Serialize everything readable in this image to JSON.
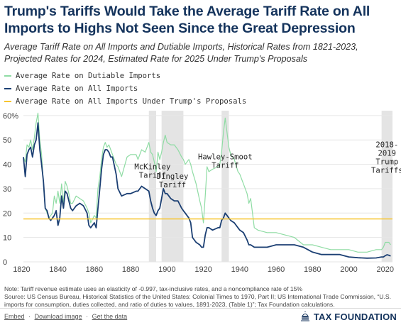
{
  "title": "Trump's Tariffs Would Take the Average Tariff Rate on All Imports to Highs Not Seen Since the Great Depression",
  "subtitle": "Average Tariff Rate on All Imports and Dutiable Imports, Historical Rates from 1821-2023, Projected Rates for 2024, Estimated Rate for 2025 Under Trump's Proposals",
  "colors": {
    "dutiable": "#8fdca4",
    "all_imports": "#1b3f73",
    "trump_proposals": "#f7c52d",
    "shading": "#e4e4e4",
    "grid": "#e6e6e6"
  },
  "chart_data": {
    "type": "line",
    "xlim": [
      1821,
      2024
    ],
    "ylim": [
      0,
      62
    ],
    "x_ticks": [
      1820,
      1840,
      1860,
      1880,
      1900,
      1920,
      1940,
      1960,
      1980,
      2000,
      2020
    ],
    "x_tick_labels": [
      "1820",
      "1840",
      "1860",
      "1880",
      "1900",
      "1920",
      "1940",
      "1960",
      "1980",
      "2000",
      "2020"
    ],
    "y_ticks": [
      0,
      10,
      20,
      30,
      40,
      50,
      60
    ],
    "y_tick_labels": [
      "0",
      "10",
      "20",
      "30",
      "40",
      "50",
      "60%"
    ],
    "legend_position": "top-left",
    "grid": true,
    "shaded_periods": [
      {
        "name": "McKinley Tariff",
        "start": 1890,
        "end": 1894
      },
      {
        "name": "Dingley Tariff",
        "start": 1897,
        "end": 1909
      },
      {
        "name": "Hawley-Smoot Tariff",
        "start": 1930,
        "end": 1934
      },
      {
        "name": "2018-2019 Trump Tariffs",
        "start": 2018,
        "end": 2024
      }
    ],
    "annotations": [
      {
        "lines": [
          "McKinley",
          "Tariff"
        ],
        "x": 1892,
        "y": 38
      },
      {
        "lines": [
          "Dingley",
          "Tariff"
        ],
        "x": 1903,
        "y": 34
      },
      {
        "lines": [
          "Hawley-Smoot",
          "Tariff"
        ],
        "x": 1932,
        "y": 42
      },
      {
        "lines": [
          "2018-",
          "2019",
          "Trump",
          "Tariffs"
        ],
        "x": 2021,
        "y": 47
      }
    ],
    "series": [
      {
        "name": "Average Rate on Dutiable Imports",
        "color_key": "dutiable",
        "x": [
          1821,
          1822,
          1823,
          1824,
          1825,
          1826,
          1827,
          1828,
          1829,
          1830,
          1831,
          1832,
          1833,
          1834,
          1835,
          1836,
          1837,
          1838,
          1839,
          1840,
          1841,
          1842,
          1843,
          1844,
          1845,
          1846,
          1847,
          1848,
          1850,
          1852,
          1854,
          1856,
          1857,
          1858,
          1860,
          1861,
          1862,
          1863,
          1864,
          1865,
          1866,
          1867,
          1868,
          1869,
          1870,
          1872,
          1873,
          1875,
          1878,
          1880,
          1883,
          1884,
          1886,
          1888,
          1890,
          1891,
          1892,
          1893,
          1894,
          1895,
          1896,
          1897,
          1898,
          1899,
          1900,
          1902,
          1904,
          1906,
          1908,
          1909,
          1910,
          1912,
          1913,
          1914,
          1916,
          1918,
          1919,
          1920,
          1921,
          1922,
          1923,
          1925,
          1928,
          1929,
          1930,
          1931,
          1932,
          1933,
          1934,
          1935,
          1937,
          1939,
          1940,
          1942,
          1944,
          1945,
          1946,
          1948,
          1950,
          1955,
          1960,
          1965,
          1970,
          1975,
          1980,
          1985,
          1990,
          1995,
          2000,
          2005,
          2010,
          2015,
          2018,
          2019,
          2020,
          2021,
          2022,
          2023
        ],
        "values": [
          43,
          41,
          48,
          47,
          50,
          46,
          51,
          57,
          61,
          50,
          44,
          32,
          22,
          20,
          18,
          19,
          20,
          27,
          24,
          29,
          24,
          32,
          24,
          33,
          31,
          28,
          24,
          24,
          27,
          26,
          25,
          22,
          20,
          16,
          19,
          18,
          30,
          35,
          42,
          47,
          49,
          47,
          48,
          46,
          44,
          40,
          39,
          35,
          43,
          44,
          44,
          42,
          46,
          45,
          49,
          45,
          44,
          41,
          37,
          45,
          42,
          45,
          49,
          52,
          49,
          48,
          48,
          46,
          43,
          42,
          40,
          42,
          40,
          37,
          32,
          25,
          22,
          16,
          27,
          39,
          37,
          38,
          39,
          40,
          45,
          53,
          59,
          53,
          47,
          44,
          42,
          37,
          36,
          32,
          28,
          24,
          26,
          14,
          13,
          12,
          12,
          11,
          10,
          7,
          7,
          6,
          5,
          5,
          5,
          4,
          4,
          5,
          5,
          6,
          8,
          8,
          8,
          7
        ]
      },
      {
        "name": "Average Rate on All Imports",
        "color_key": "all_imports",
        "x": [
          1821,
          1822,
          1823,
          1824,
          1825,
          1826,
          1827,
          1828,
          1829,
          1830,
          1831,
          1832,
          1833,
          1834,
          1835,
          1836,
          1837,
          1838,
          1839,
          1840,
          1841,
          1842,
          1843,
          1844,
          1845,
          1846,
          1847,
          1848,
          1850,
          1852,
          1854,
          1856,
          1857,
          1858,
          1860,
          1861,
          1862,
          1863,
          1864,
          1865,
          1866,
          1867,
          1868,
          1869,
          1870,
          1872,
          1873,
          1875,
          1878,
          1880,
          1883,
          1884,
          1886,
          1888,
          1890,
          1891,
          1892,
          1893,
          1894,
          1895,
          1896,
          1897,
          1898,
          1899,
          1900,
          1902,
          1904,
          1906,
          1908,
          1909,
          1910,
          1912,
          1913,
          1914,
          1916,
          1918,
          1919,
          1920,
          1921,
          1922,
          1923,
          1925,
          1928,
          1929,
          1930,
          1931,
          1932,
          1933,
          1934,
          1935,
          1937,
          1939,
          1940,
          1942,
          1944,
          1945,
          1946,
          1948,
          1950,
          1955,
          1960,
          1965,
          1970,
          1975,
          1980,
          1985,
          1990,
          1995,
          2000,
          2005,
          2010,
          2015,
          2018,
          2019,
          2020,
          2021,
          2022,
          2023
        ],
        "values": [
          43,
          35,
          44,
          46,
          47,
          43,
          48,
          50,
          57,
          46,
          40,
          33,
          22,
          21,
          18,
          17,
          18,
          19,
          21,
          15,
          18,
          27,
          22,
          29,
          28,
          25,
          22,
          21,
          23,
          24,
          23,
          20,
          15,
          14,
          16,
          14,
          22,
          30,
          38,
          44,
          46,
          46,
          45,
          43,
          43,
          36,
          30,
          27,
          28,
          28,
          29,
          29,
          31,
          30,
          29,
          25,
          22,
          20,
          19,
          21,
          22,
          26,
          30,
          28,
          28,
          26,
          25,
          25,
          22,
          21,
          20,
          18,
          16,
          10,
          8,
          7,
          6,
          6,
          11,
          14,
          14,
          13,
          14,
          14,
          17,
          18,
          20,
          19,
          18,
          17,
          16,
          14,
          13,
          12,
          9,
          7,
          7,
          6,
          6,
          6,
          7,
          7,
          7,
          6,
          4,
          3,
          3,
          3,
          2,
          1.7,
          1.5,
          1.6,
          2,
          2,
          2.5,
          2.9,
          2.7,
          2.4
        ]
      },
      {
        "name": "Average Rate on All Imports Under Trump's Proposals",
        "color_key": "trump_proposals",
        "x": [
          1821,
          2024
        ],
        "values": [
          17.6,
          17.6
        ]
      }
    ]
  },
  "note": "Note: Tariff revenue estimate uses an elasticity of -0.997, tax-inclusive rates, and a noncompliance rate of 15%",
  "source": "Source: US Census Bureau, Historical Statistics of the United States: Colonial Times to 1970, Part II; US International Trade Commission, “U.S. imports for consumption, duties collected, and ratio of duties to values, 1891-2023, (Table 1)”; Tax Foundation calculations.",
  "footer": {
    "embed_label": "Embed",
    "download_label": "Download image",
    "data_label": "Get the data",
    "separator": "·"
  },
  "brand": {
    "name": "TAX FOUNDATION",
    "icon": "dome-icon"
  }
}
